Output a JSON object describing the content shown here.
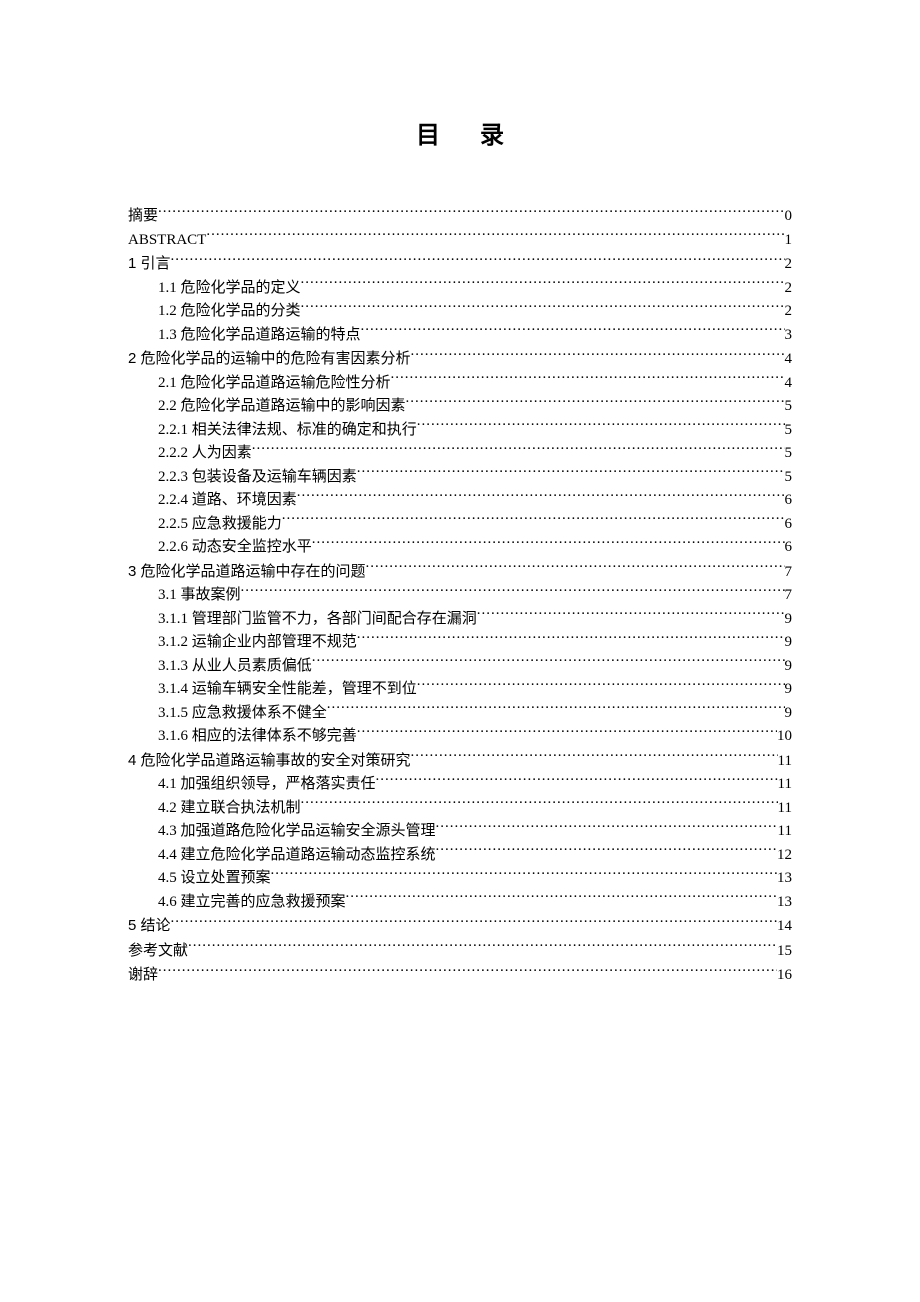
{
  "title_char1": "目",
  "title_char2": "录",
  "entries": [
    {
      "level": 0,
      "bold": false,
      "label": "摘要",
      "page": "0"
    },
    {
      "level": 0,
      "bold": false,
      "label": "ABSTRACT",
      "page": "1"
    },
    {
      "level": 0,
      "bold": true,
      "label": "1  引言",
      "page": "2"
    },
    {
      "level": 1,
      "bold": false,
      "label": "1.1  危险化学品的定义",
      "page": "2"
    },
    {
      "level": 1,
      "bold": false,
      "label": "1.2  危险化学品的分类",
      "page": "2"
    },
    {
      "level": 1,
      "bold": false,
      "label": "1.3  危险化学品道路运输的特点",
      "page": "3"
    },
    {
      "level": 0,
      "bold": true,
      "label": "2  危险化学品的运输中的危险有害因素分析",
      "page": "4"
    },
    {
      "level": 1,
      "bold": false,
      "label": "2.1  危险化学品道路运输危险性分析",
      "page": "4"
    },
    {
      "level": 1,
      "bold": false,
      "label": "2.2  危险化学品道路运输中的影响因素",
      "page": "5"
    },
    {
      "level": 2,
      "bold": false,
      "label": "2.2.1  相关法律法规、标准的确定和执行",
      "page": "5"
    },
    {
      "level": 2,
      "bold": false,
      "label": "2.2.2  人为因素",
      "page": "5"
    },
    {
      "level": 2,
      "bold": false,
      "label": "2.2.3  包装设备及运输车辆因素",
      "page": "5"
    },
    {
      "level": 2,
      "bold": false,
      "label": "2.2.4  道路、环境因素",
      "page": "6"
    },
    {
      "level": 2,
      "bold": false,
      "label": "2.2.5  应急救援能力",
      "page": "6"
    },
    {
      "level": 2,
      "bold": false,
      "label": "2.2.6  动态安全监控水平",
      "page": "6"
    },
    {
      "level": 0,
      "bold": true,
      "label": "3  危险化学品道路运输中存在的问题",
      "page": "7"
    },
    {
      "level": 1,
      "bold": false,
      "label": "3.1  事故案例",
      "page": "7"
    },
    {
      "level": 2,
      "bold": false,
      "label": "3.1.1  管理部门监管不力，各部门间配合存在漏洞",
      "page": "9"
    },
    {
      "level": 2,
      "bold": false,
      "label": "3.1.2  运输企业内部管理不规范",
      "page": "9"
    },
    {
      "level": 2,
      "bold": false,
      "label": "3.1.3  从业人员素质偏低",
      "page": "9"
    },
    {
      "level": 2,
      "bold": false,
      "label": "3.1.4  运输车辆安全性能差，管理不到位",
      "page": "9"
    },
    {
      "level": 2,
      "bold": false,
      "label": "3.1.5  应急救援体系不健全",
      "page": "9"
    },
    {
      "level": 2,
      "bold": false,
      "label": "3.1.6  相应的法律体系不够完善",
      "page": "10"
    },
    {
      "level": 0,
      "bold": true,
      "label": "4  危险化学品道路运输事故的安全对策研究",
      "page": "11"
    },
    {
      "level": 1,
      "bold": false,
      "label": "4.1  加强组织领导，严格落实责任",
      "page": "11"
    },
    {
      "level": 1,
      "bold": false,
      "label": "4.2  建立联合执法机制",
      "page": "11"
    },
    {
      "level": 1,
      "bold": false,
      "label": "4.3  加强道路危险化学品运输安全源头管理",
      "page": "11"
    },
    {
      "level": 1,
      "bold": false,
      "label": "4.4  建立危险化学品道路运输动态监控系统",
      "page": "12"
    },
    {
      "level": 1,
      "bold": false,
      "label": "4.5  设立处置预案",
      "page": "13"
    },
    {
      "level": 1,
      "bold": false,
      "label": "4.6  建立完善的应急救援预案",
      "page": "13"
    },
    {
      "level": 0,
      "bold": true,
      "label": "5  结论",
      "page": "14"
    },
    {
      "level": 0,
      "bold": true,
      "label": "参考文献",
      "page": "15"
    },
    {
      "level": 0,
      "bold": true,
      "label": "谢辞",
      "page": "16"
    }
  ]
}
